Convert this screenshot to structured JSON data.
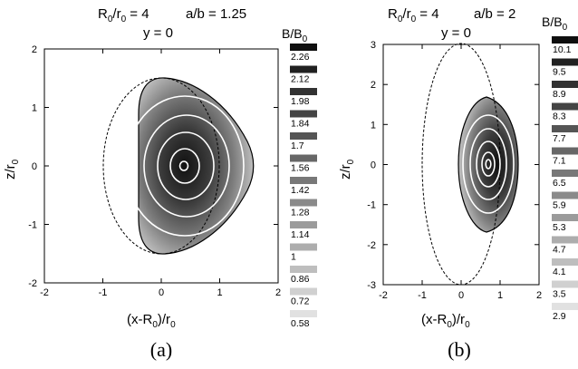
{
  "chart_data": [
    {
      "type": "heatmap",
      "title_parts": {
        "r": "R",
        "r_sub": "0",
        "slash": "/r",
        "r0_sub": "0",
        "eq": " = 4",
        "ab": "a/b = 1.25"
      },
      "subtitle": "y = 0",
      "xlabel_parts": {
        "pre": "(x-R",
        "sub": "0",
        "post": ")/r",
        "sub2": "0"
      },
      "ylabel_parts": {
        "pre": "z/r",
        "sub": "0"
      },
      "xlim": [
        -2,
        2
      ],
      "ylim": [
        -2,
        2
      ],
      "xticks": [
        "-2",
        "-1",
        "0",
        "1",
        "2"
      ],
      "yticks": [
        "-2",
        "-1",
        "0",
        "1",
        "2"
      ],
      "colorbar": {
        "title_parts": {
          "pre": "B/B",
          "sub": "0"
        },
        "values": [
          "2.26",
          "2.12",
          "1.98",
          "1.84",
          "1.7",
          "1.56",
          "1.42",
          "1.28",
          "1.14",
          "1",
          "0.86",
          "0.72",
          "0.58"
        ]
      },
      "caption": "(a)"
    },
    {
      "type": "heatmap",
      "title_parts": {
        "r": "R",
        "r_sub": "0",
        "slash": "/r",
        "r0_sub": "0",
        "eq": " = 4",
        "ab": "a/b = 2"
      },
      "subtitle": "y = 0",
      "xlabel_parts": {
        "pre": "(x-R",
        "sub": "0",
        "post": ")/r",
        "sub2": "0"
      },
      "ylabel_parts": {
        "pre": "z/r",
        "sub": "0"
      },
      "xlim": [
        -2,
        2
      ],
      "ylim": [
        -3,
        3
      ],
      "xticks": [
        "-2",
        "-1",
        "0",
        "1",
        "2"
      ],
      "yticks": [
        "-3",
        "-2",
        "-1",
        "0",
        "1",
        "2",
        "3"
      ],
      "colorbar": {
        "title_parts": {
          "pre": "B/B",
          "sub": "0"
        },
        "values": [
          "10.1",
          "9.5",
          "8.9",
          "8.3",
          "7.7",
          "7.1",
          "6.5",
          "5.9",
          "5.3",
          "4.7",
          "4.1",
          "3.5",
          "2.9"
        ]
      },
      "caption": "(b)"
    }
  ]
}
